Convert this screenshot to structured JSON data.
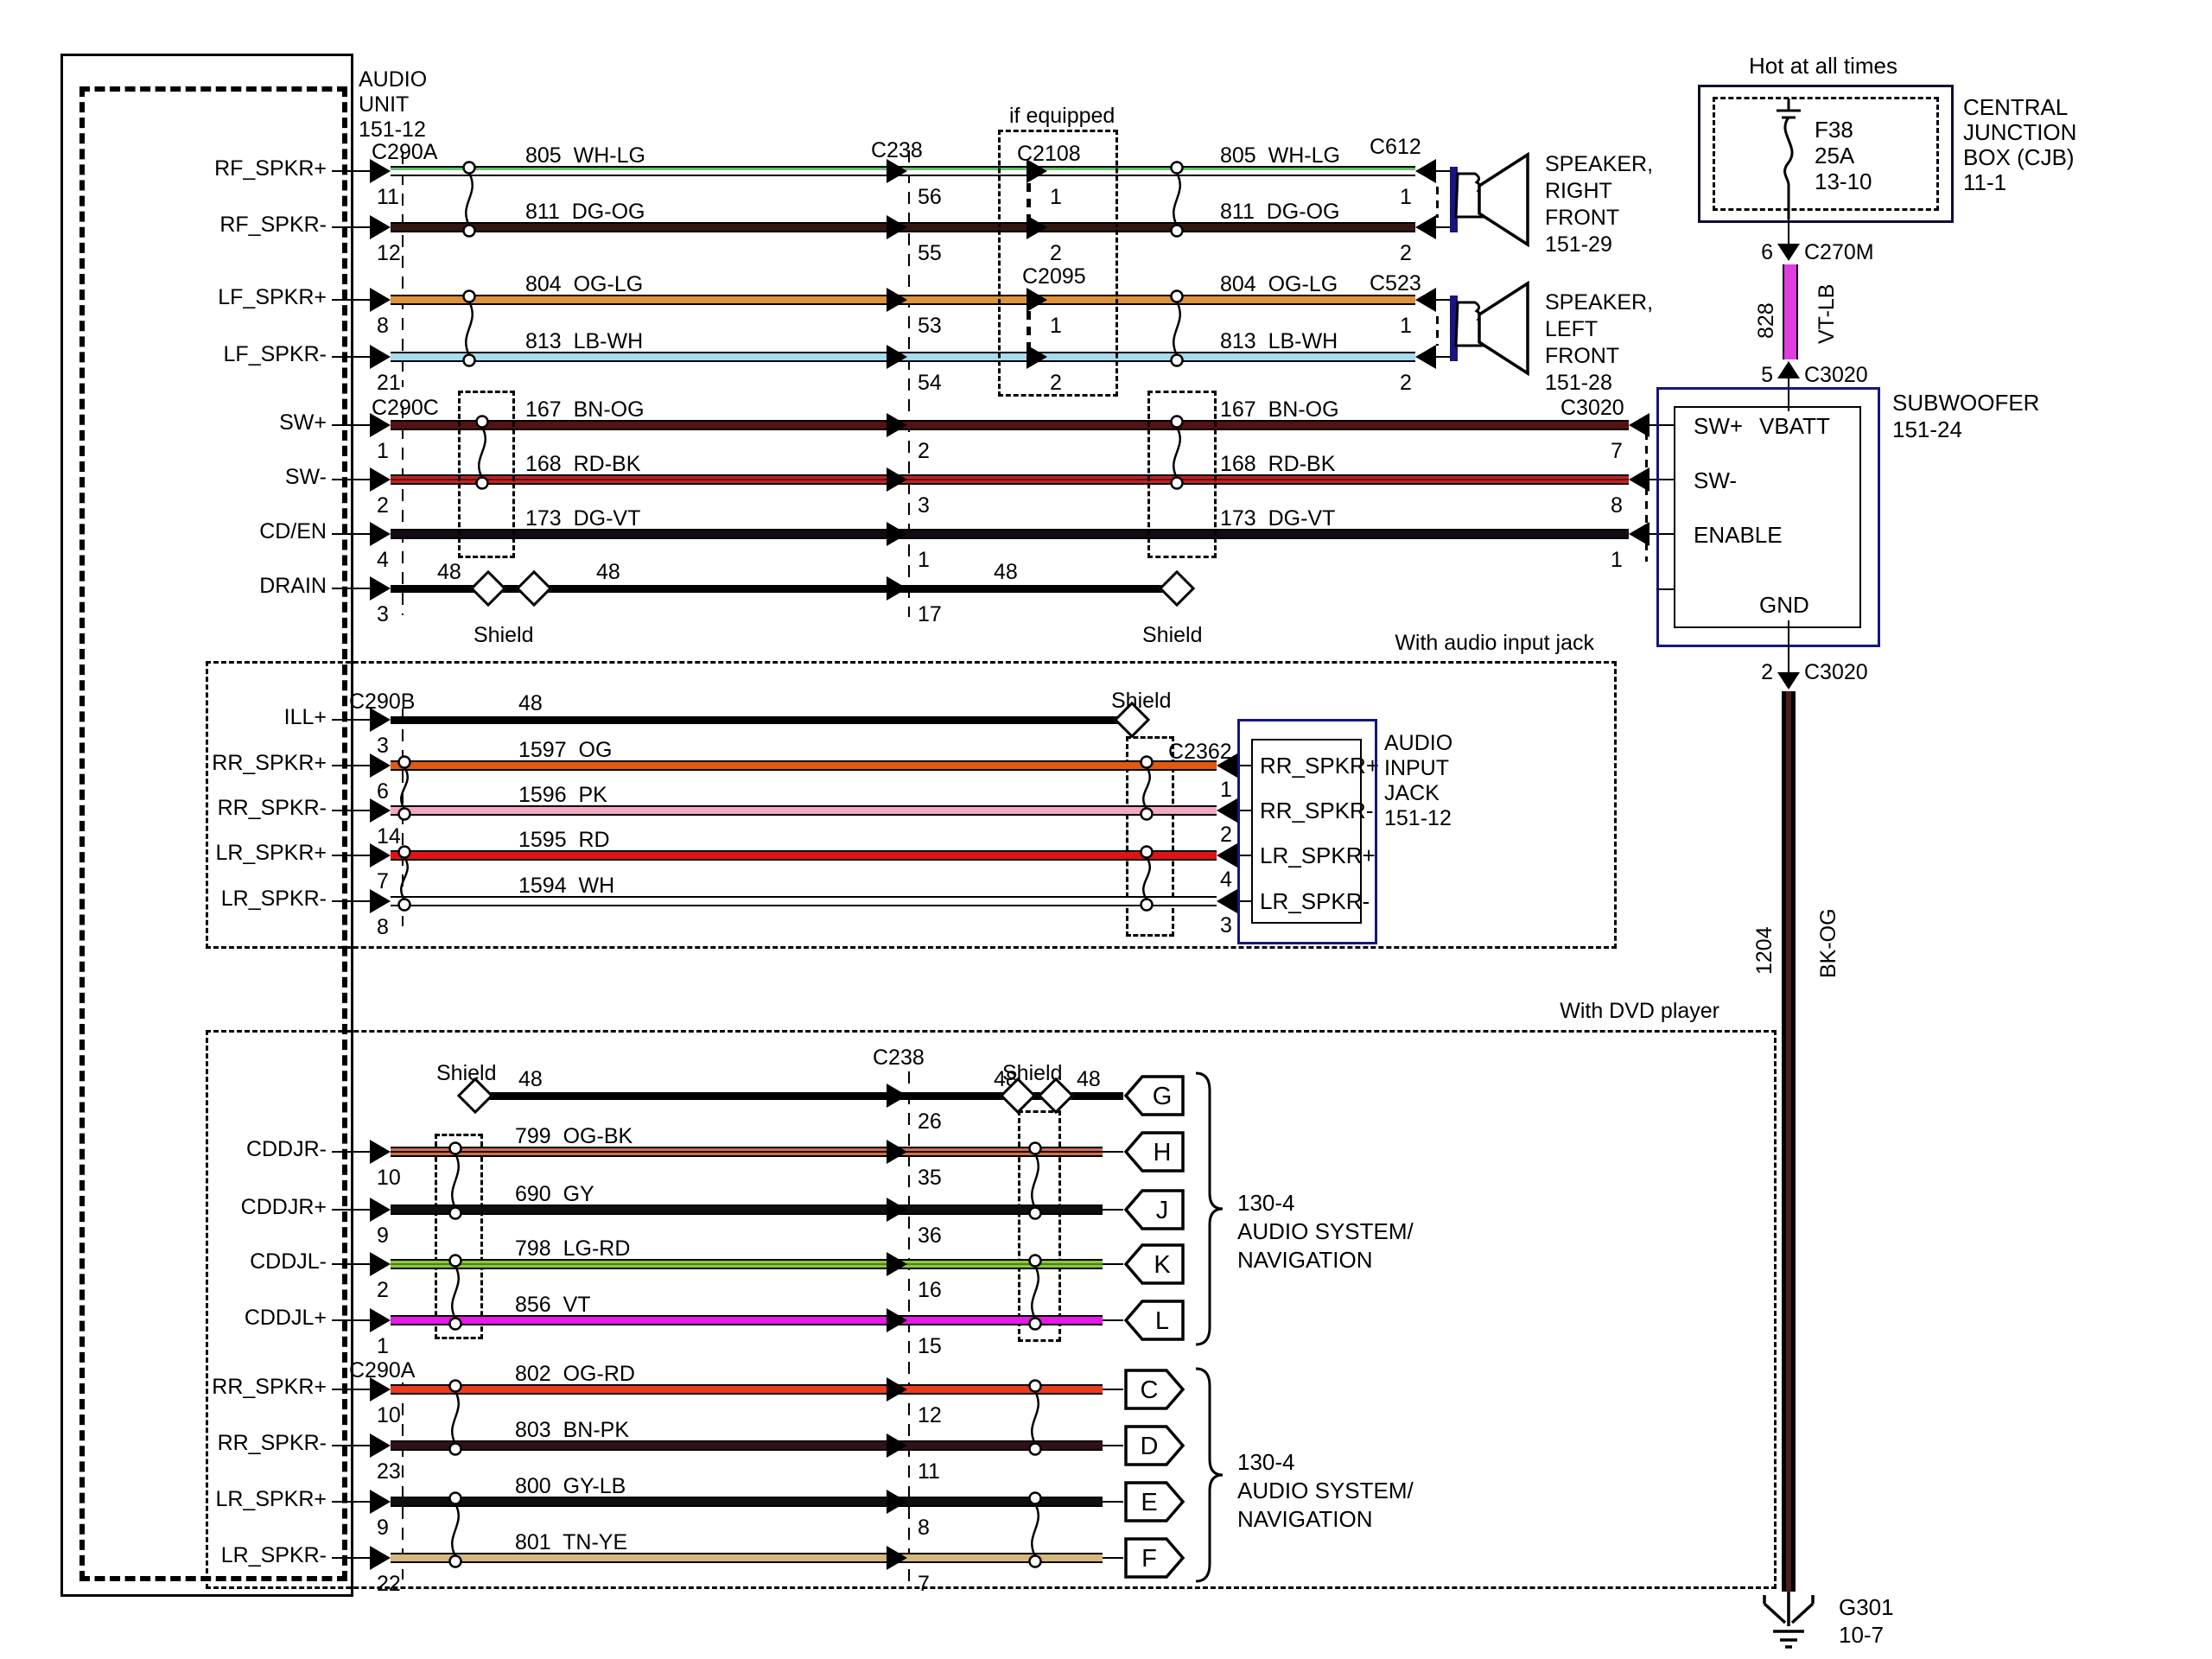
{
  "audio_unit": {
    "name_lines": [
      "AUDIO",
      "UNIT",
      "151-12"
    ]
  },
  "colors": {
    "navy_box": "#16167e",
    "wh_lg": {
      "body": "#ffffff",
      "stripe": "#6abf69"
    },
    "dg_og": {
      "body": "#301810"
    },
    "og_lg": {
      "body": "#e0913c"
    },
    "lb_wh": {
      "body": "#a6dced"
    },
    "bn_og": {
      "body": "#541212"
    },
    "rd_bk": {
      "body": "#c22424",
      "stripe": "#6b0d0d"
    },
    "dg_vt": {
      "body": "#140a14"
    },
    "bk": {
      "body": "#000000"
    },
    "og": {
      "body": "#e3590e"
    },
    "pk": {
      "body": "#f2a8c4"
    },
    "rd": {
      "body": "#e51212"
    },
    "wh": {
      "body": "#ffffff"
    },
    "og_bk": {
      "body": "#c97055",
      "stripe": "#201008"
    },
    "gy": {
      "body": "#0f0f0f"
    },
    "lg_rd": {
      "body": "#8cc63e",
      "stripe": "#4e7d1a"
    },
    "vt": {
      "body": "#e619e6"
    },
    "og_rd": {
      "body": "#ef3b1c"
    },
    "bn_pk": {
      "body": "#331018"
    },
    "gy_lb": {
      "body": "#101010"
    },
    "tn_ye": {
      "body": "#d7b77b"
    },
    "vt_lb": {
      "body": "#df3fdf"
    },
    "bk_og": {
      "body": "#000000",
      "stripe": "#4a2018"
    }
  },
  "connectors": {
    "c290a": "C290A",
    "c290b": "C290B",
    "c290c": "C290C",
    "c238": "C238",
    "c2108": "C2108",
    "c2095": "C2095",
    "c612": "C612",
    "c523": "C523",
    "c2362": "C2362",
    "c3020": "C3020",
    "c270m": "C270M"
  },
  "top": {
    "if_equipped": "if equipped",
    "shield": "Shield",
    "drain_wire": "48",
    "rows": [
      {
        "signal": "RF_SPKR+",
        "pin": "11",
        "c238_pin": "56",
        "ifeq_pin": "1",
        "spk_pin": "1",
        "label": "805  WH-LG",
        "color": "wh_lg"
      },
      {
        "signal": "RF_SPKR-",
        "pin": "12",
        "c238_pin": "55",
        "ifeq_pin": "2",
        "spk_pin": "2",
        "label": "811  DG-OG",
        "color": "dg_og"
      },
      {
        "signal": "LF_SPKR+",
        "pin": "8",
        "c238_pin": "53",
        "ifeq_pin": "1",
        "spk_pin": "1",
        "label": "804  OG-LG",
        "color": "og_lg"
      },
      {
        "signal": "LF_SPKR-",
        "pin": "21",
        "c238_pin": "54",
        "ifeq_pin": "2",
        "spk_pin": "2",
        "label": "813  LB-WH",
        "color": "lb_wh"
      }
    ],
    "sw_rows": [
      {
        "signal": "SW+",
        "pin": "1",
        "c238_pin": "2",
        "sub_pin": "7",
        "label": "167  BN-OG",
        "color": "bn_og"
      },
      {
        "signal": "SW-",
        "pin": "2",
        "c238_pin": "3",
        "sub_pin": "8",
        "label": "168  RD-BK",
        "color": "rd_bk"
      },
      {
        "signal": "CD/EN",
        "pin": "4",
        "c238_pin": "1",
        "sub_pin": "1",
        "label": "173  DG-VT",
        "color": "dg_vt"
      }
    ],
    "drain": {
      "signal": "DRAIN",
      "pin": "3",
      "c238_pin": "17"
    },
    "speakers": [
      {
        "lines": [
          "SPEAKER,",
          "RIGHT",
          "FRONT",
          "151-29"
        ]
      },
      {
        "lines": [
          "SPEAKER,",
          "LEFT",
          "FRONT",
          "151-28"
        ]
      }
    ]
  },
  "cjb": {
    "hot": "Hot at all times",
    "fuse_lines": [
      "F38",
      "25A",
      "13-10"
    ],
    "name_lines": [
      "CENTRAL",
      "JUNCTION",
      "BOX (CJB)",
      "11-1"
    ],
    "pin6": "6",
    "pin5": "5",
    "pin2": "2",
    "wire828": {
      "num": "828",
      "code": "VT-LB"
    },
    "wire1204": {
      "num": "1204",
      "code": "BK-OG"
    },
    "ground_lines": [
      "G301",
      "10-7"
    ]
  },
  "subwoofer": {
    "sw_plus": "SW+",
    "vbatt": "VBATT",
    "sw_minus": "SW-",
    "enable": "ENABLE",
    "gnd": "GND",
    "name_lines": [
      "SUBWOOFER",
      "151-24"
    ]
  },
  "audio_jack": {
    "title": "With audio input jack",
    "shield": "Shield",
    "ill": {
      "signal": "ILL+",
      "pin": "3",
      "label": "48",
      "color": "bk"
    },
    "rows": [
      {
        "signal": "RR_SPKR+",
        "pin": "6",
        "jack_pin": "1",
        "label": "1597  OG",
        "color": "og",
        "jack_label": "RR_SPKR+"
      },
      {
        "signal": "RR_SPKR-",
        "pin": "14",
        "jack_pin": "2",
        "label": "1596  PK",
        "color": "pk",
        "jack_label": "RR_SPKR-"
      },
      {
        "signal": "LR_SPKR+",
        "pin": "7",
        "jack_pin": "4",
        "label": "1595  RD",
        "color": "rd",
        "jack_label": "LR_SPKR+"
      },
      {
        "signal": "LR_SPKR-",
        "pin": "8",
        "jack_pin": "3",
        "label": "1594  WH",
        "color": "wh",
        "jack_label": "LR_SPKR-"
      }
    ],
    "name_lines": [
      "AUDIO",
      "INPUT",
      "JACK",
      "151-12"
    ]
  },
  "dvd": {
    "title": "With DVD player",
    "shield": "Shield",
    "wire48": "48",
    "g_row": {
      "c238_pin": "26",
      "letter": "G"
    },
    "nav_lines": [
      "130-4",
      "AUDIO SYSTEM/",
      "NAVIGATION"
    ],
    "rows_upper": [
      {
        "signal": "CDDJR-",
        "pin": "10",
        "c238_pin": "35",
        "label": "799  OG-BK",
        "color": "og_bk",
        "letter": "H"
      },
      {
        "signal": "CDDJR+",
        "pin": "9",
        "c238_pin": "36",
        "label": "690  GY",
        "color": "gy",
        "letter": "J"
      },
      {
        "signal": "CDDJL-",
        "pin": "2",
        "c238_pin": "16",
        "label": "798  LG-RD",
        "color": "lg_rd",
        "letter": "K"
      },
      {
        "signal": "CDDJL+",
        "pin": "1",
        "c238_pin": "15",
        "label": "856  VT",
        "color": "vt",
        "letter": "L"
      }
    ],
    "rows_lower": [
      {
        "signal": "RR_SPKR+",
        "pin": "10",
        "c238_pin": "12",
        "label": "802  OG-RD",
        "color": "og_rd",
        "letter": "C"
      },
      {
        "signal": "RR_SPKR-",
        "pin": "23",
        "c238_pin": "11",
        "label": "803  BN-PK",
        "color": "bn_pk",
        "letter": "D"
      },
      {
        "signal": "LR_SPKR+",
        "pin": "9",
        "c238_pin": "8",
        "label": "800  GY-LB",
        "color": "gy_lb",
        "letter": "E"
      },
      {
        "signal": "LR_SPKR-",
        "pin": "22",
        "c238_pin": "7",
        "label": "801  TN-YE",
        "color": "tn_ye",
        "letter": "F"
      }
    ]
  }
}
